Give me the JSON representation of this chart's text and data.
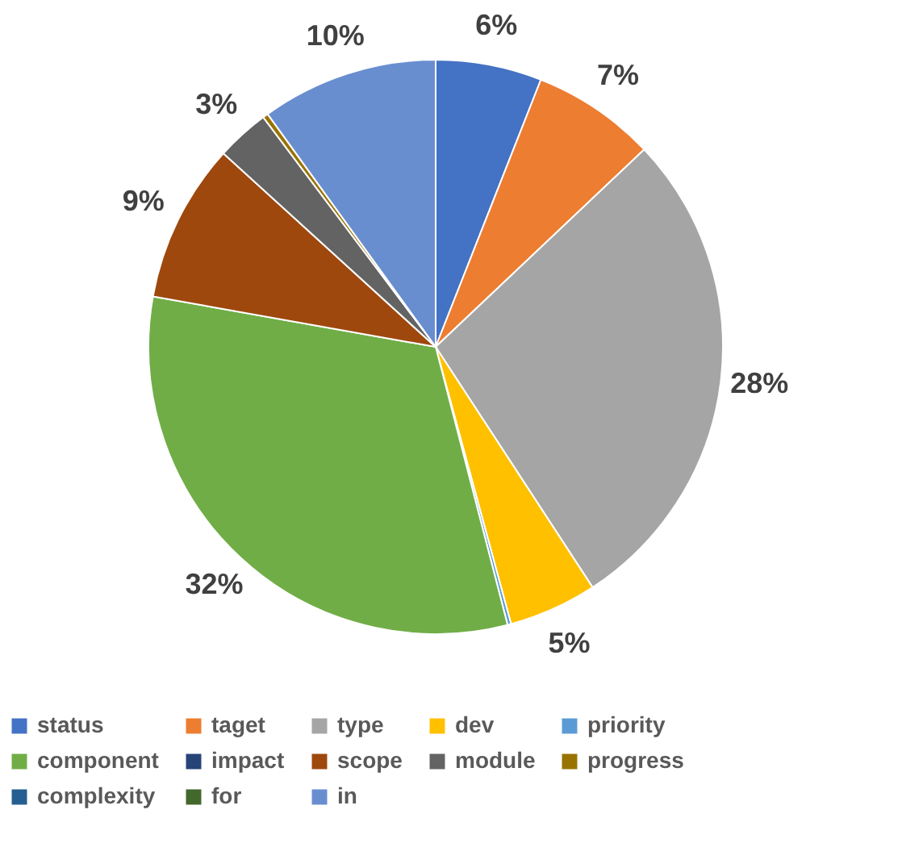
{
  "chart_data": {
    "type": "pie",
    "categories": [
      "status",
      "taget",
      "type",
      "dev",
      "priority",
      "component",
      "impact",
      "scope",
      "module",
      "progress",
      "complexity",
      "for",
      "in"
    ],
    "values": [
      6,
      7,
      28,
      5,
      0.2,
      32,
      0,
      9,
      3,
      0.3,
      0,
      0,
      10
    ],
    "value_labels": [
      "6%",
      "7%",
      "28%",
      "5%",
      null,
      "32%",
      null,
      "9%",
      "3%",
      null,
      null,
      null,
      "10%"
    ],
    "colors": [
      "#4472c4",
      "#ed7d31",
      "#a5a5a5",
      "#ffc000",
      "#5b9bd5",
      "#70ad47",
      "#264478",
      "#9e480e",
      "#636363",
      "#997300",
      "#255e91",
      "#43682b",
      "#698ed0"
    ],
    "legend": "bottom"
  }
}
